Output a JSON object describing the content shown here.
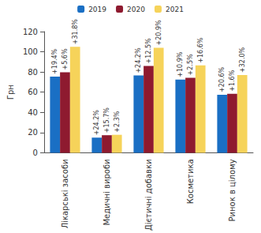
{
  "chart_data": {
    "type": "bar",
    "y_label": "Грн",
    "categories": [
      "Лікарські засоби",
      "Медичні вироби",
      "Дієтичні добавки",
      "Косметика",
      "Ринок в цілому"
    ],
    "series": [
      {
        "name": "2019",
        "color": "#1a6fc4",
        "values": [
          75.5,
          15,
          76.5,
          72.5,
          57.5
        ],
        "annotations": [
          "+19.4%",
          "+24.2%",
          "+24.2%",
          "+10.9%",
          "+20.6%"
        ]
      },
      {
        "name": "2020",
        "color": "#8e1a2f",
        "values": [
          79.7,
          17.4,
          86,
          74.3,
          58.4
        ],
        "annotations": [
          "+5.6%",
          "+15.7%",
          "+12.5%",
          "+2.5%",
          "+1.6%"
        ]
      },
      {
        "name": "2021",
        "color": "#f6d35a",
        "values": [
          105,
          17.8,
          104,
          86.6,
          77
        ],
        "annotations": [
          "+31.8%",
          "+2.3%",
          "+20.9%",
          "+16.6%",
          "+32.0%"
        ]
      }
    ],
    "ylim": [
      0,
      120
    ],
    "yticks": [
      0,
      20,
      40,
      60,
      80,
      100,
      120
    ],
    "grid": false,
    "legend": "top"
  }
}
